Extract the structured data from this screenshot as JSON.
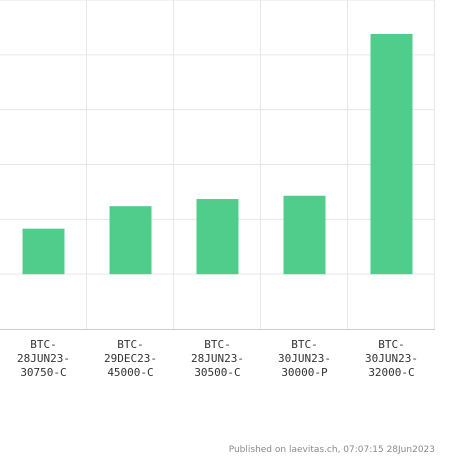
{
  "chart_data": {
    "type": "bar",
    "categories": [
      [
        "BTC-",
        "28JUN23-",
        "30750-C"
      ],
      [
        "BTC-",
        "29DEC23-",
        "45000-C"
      ],
      [
        "BTC-",
        "28JUN23-",
        "30500-C"
      ],
      [
        "BTC-",
        "30JUN23-",
        "30000-P"
      ],
      [
        "BTC-",
        "30JUN23-",
        "32000-C"
      ]
    ],
    "values": [
      8.3,
      12.4,
      13.7,
      14.3,
      43.8
    ],
    "ylim": [
      -10,
      50
    ],
    "bar_color": "#50cd8a",
    "grid": true,
    "title": "",
    "xlabel": "",
    "ylabel": ""
  },
  "footer": "Published on laevitas.ch, 07:07:15 28Jun2023"
}
